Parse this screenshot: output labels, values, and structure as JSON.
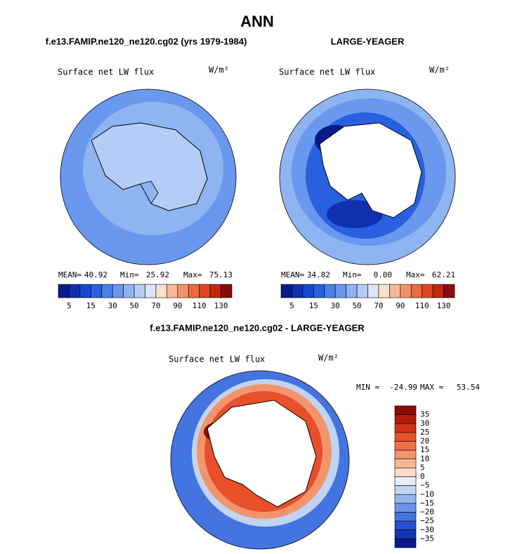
{
  "title": "ANN",
  "panels": [
    {
      "heading": "f.e13.FAMIP.ne120_ne120.cg02 (yrs 1979-1984)",
      "label": "Surface net LW flux",
      "units": "W/m²",
      "stats": [
        {
          "label": "MEAN=",
          "value": "40.92"
        },
        {
          "label": "Min=",
          "value": "25.92"
        },
        {
          "label": "Max=",
          "value": "75.13"
        }
      ]
    },
    {
      "heading": "LARGE-YEAGER",
      "label": "Surface net LW flux",
      "units": "W/m²",
      "stats": [
        {
          "label": "MEAN=",
          "value": "34.82"
        },
        {
          "label": "Min=",
          "value": "0.00"
        },
        {
          "label": "Max=",
          "value": "62.21"
        }
      ]
    }
  ],
  "colorbar": {
    "labels": [
      "5",
      "15",
      "30",
      "50",
      "70",
      "90",
      "110",
      "130"
    ],
    "colors": [
      "#0a1a8a",
      "#1030b0",
      "#1848d0",
      "#2860e0",
      "#4a80e8",
      "#6a98ee",
      "#8fb4f2",
      "#b5cdf6",
      "#dae6fa",
      "#fbe0cc",
      "#f6b896",
      "#f29268",
      "#ec6a40",
      "#e04420",
      "#c02810",
      "#8a0c08"
    ]
  },
  "difference": {
    "heading": "f.e13.FAMIP.ne120_ne120.cg02 - LARGE-YEAGER",
    "label": "Surface net LW flux",
    "units": "W/m²",
    "stats": [
      {
        "label": "MIN =",
        "value": "-24.99"
      },
      {
        "label": "MAX =",
        "value": "53.54"
      }
    ],
    "colorbar": {
      "labels": [
        "35",
        "30",
        "25",
        "20",
        "15",
        "10",
        "5",
        "0",
        "−5",
        "−10",
        "−15",
        "−20",
        "−25",
        "−30",
        "−35"
      ],
      "colors": [
        "#8a0c08",
        "#b01c0c",
        "#d03414",
        "#e8502a",
        "#f07048",
        "#f4946c",
        "#f8b898",
        "#fcdcc8",
        "#e8eefa",
        "#c0d4f4",
        "#94b6ee",
        "#6a94e6",
        "#4474e0",
        "#2450d4",
        "#1234b0",
        "#0a1a8a"
      ]
    }
  }
}
